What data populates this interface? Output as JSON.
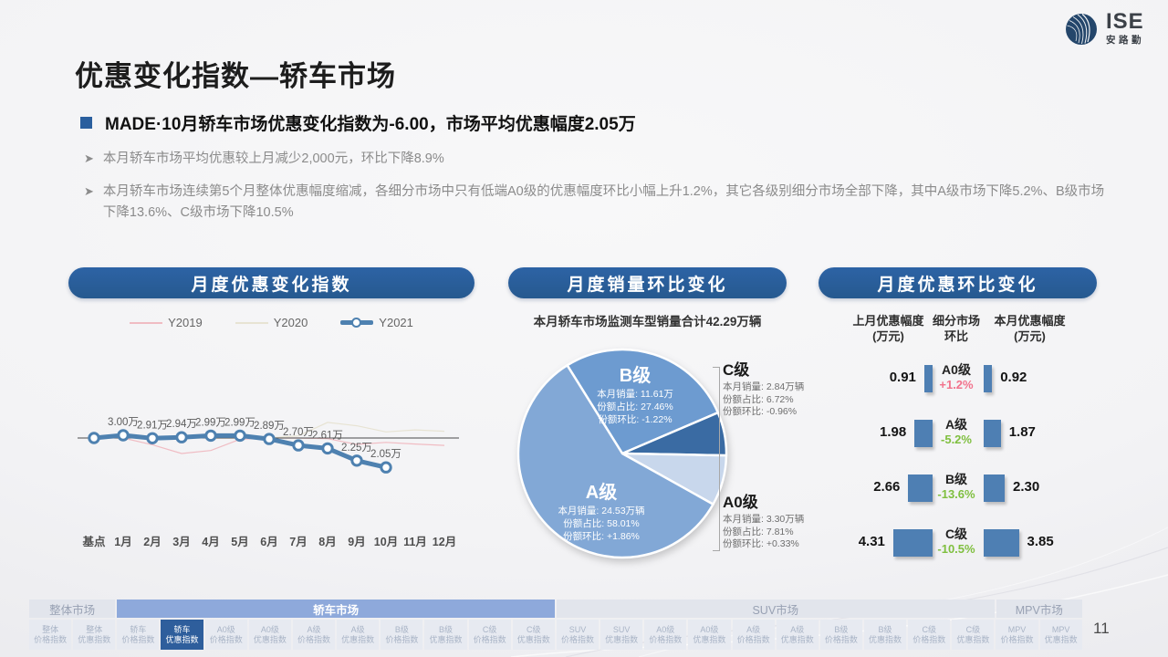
{
  "logo": {
    "brand": "ISE",
    "subbrand": "安路勤"
  },
  "slide": {
    "title": "优惠变化指数—轿车市场",
    "page_number": "11"
  },
  "summary": {
    "headline": "MADE·10月轿车市场优惠变化指数为-6.00，市场平均优惠幅度2.05万",
    "bullets": [
      "本月轿车市场平均优惠较上月减少2,000元，环比下降8.9%",
      "本月轿车市场连续第5个月整体优惠幅度缩减，各细分市场中只有低端A0级的优惠幅度环比小幅上升1.2%，其它各级别细分市场全部下降，其中A级市场下降5.2%、B级市场下降13.6%、C级市场下降10.5%"
    ]
  },
  "chart_data": [
    {
      "type": "line",
      "title": "月度优惠变化指数",
      "categories": [
        "基点",
        "1月",
        "2月",
        "3月",
        "4月",
        "5月",
        "6月",
        "7月",
        "8月",
        "9月",
        "10月",
        "11月",
        "12月"
      ],
      "unit": "万",
      "legend_position": "top",
      "series": [
        {
          "name": "Y2019",
          "color": "#f0bcc3",
          "values": [
            2.92,
            2.92,
            2.72,
            2.46,
            2.55,
            2.88,
            2.92,
            2.92,
            2.9,
            2.73,
            2.79,
            2.74,
            2.7
          ]
        },
        {
          "name": "Y2020",
          "color": "#e7e3d3",
          "values": [
            2.92,
            2.92,
            2.92,
            2.92,
            2.92,
            2.92,
            2.92,
            2.98,
            3.38,
            3.28,
            3.1,
            3.16,
            3.12
          ]
        },
        {
          "name": "Y2021",
          "color": "#4e81b0",
          "values": [
            null,
            3.0,
            2.91,
            2.94,
            2.99,
            2.99,
            2.89,
            2.7,
            2.61,
            2.25,
            2.05,
            null,
            null
          ],
          "labels": [
            "",
            "3.00万",
            "2.91万",
            "2.94万",
            "2.99万",
            "2.99万",
            "2.89万",
            "2.70万",
            "2.61万",
            "2.25万",
            "2.05万",
            "",
            ""
          ]
        }
      ]
    },
    {
      "type": "pie",
      "title": "月度销量环比变化",
      "subtitle": "本月轿车市场监测车型销量合计42.29万辆",
      "field_labels": {
        "sales": "本月销量:",
        "share": "份额占比:",
        "mom": "份额环比:"
      },
      "start_angle_deg": -32,
      "slices": [
        {
          "name": "B级",
          "sales": "11.61万",
          "share": "27.46%",
          "share_pct": 27.46,
          "mom": "-1.22%",
          "color": "#6d9bd0",
          "label": "inside"
        },
        {
          "name": "C级",
          "sales": "2.84万辆",
          "share": "6.72%",
          "share_pct": 6.72,
          "mom": "-0.96%",
          "color": "#3a6ba3",
          "label": "callout"
        },
        {
          "name": "A0级",
          "sales": "3.30万辆",
          "share": "7.81%",
          "share_pct": 7.81,
          "mom": "+0.33%",
          "color": "#c8d7ec",
          "label": "callout"
        },
        {
          "name": "A级",
          "sales": "24.53万辆",
          "share": "58.01%",
          "share_pct": 58.01,
          "mom": "+1.86%",
          "color": "#82a8d6",
          "label": "inside"
        }
      ]
    },
    {
      "type": "bar",
      "title": "月度优惠环比变化",
      "bar_color": "#4e7fb3",
      "columns": [
        {
          "l1": "上月优惠幅度",
          "l2": "(万元)"
        },
        {
          "l1": "细分市场",
          "l2": "环比"
        },
        {
          "l1": "本月优惠幅度",
          "l2": "(万元)"
        }
      ],
      "rows": [
        {
          "segment": "A0级",
          "prev": "0.91",
          "mom": "+1.2%",
          "mom_color": "#f2728c",
          "curr": "0.92"
        },
        {
          "segment": "A级",
          "prev": "1.98",
          "mom": "-5.2%",
          "mom_color": "#7fbf3f",
          "curr": "1.87"
        },
        {
          "segment": "B级",
          "prev": "2.66",
          "mom": "-13.6%",
          "mom_color": "#7fbf3f",
          "curr": "2.30"
        },
        {
          "segment": "C级",
          "prev": "4.31",
          "mom": "-10.5%",
          "mom_color": "#7fbf3f",
          "curr": "3.85"
        }
      ]
    }
  ],
  "bottom_nav": {
    "groups": [
      {
        "label": "整体市场",
        "span": 2,
        "active": false
      },
      {
        "label": "轿车市场",
        "span": 10,
        "active": true
      },
      {
        "label": "SUV市场",
        "span": 10,
        "active": false
      },
      {
        "label": "MPV市场",
        "span": 2,
        "active": false
      }
    ],
    "tabs": [
      {
        "line1": "整体",
        "line2": "价格指数",
        "active": false
      },
      {
        "line1": "整体",
        "line2": "优惠指数",
        "active": false
      },
      {
        "line1": "轿车",
        "line2": "价格指数",
        "active": false
      },
      {
        "line1": "轿车",
        "line2": "优惠指数",
        "active": true
      },
      {
        "line1": "A0级",
        "line2": "价格指数",
        "active": false
      },
      {
        "line1": "A0级",
        "line2": "优惠指数",
        "active": false
      },
      {
        "line1": "A级",
        "line2": "价格指数",
        "active": false
      },
      {
        "line1": "A级",
        "line2": "优惠指数",
        "active": false
      },
      {
        "line1": "B级",
        "line2": "价格指数",
        "active": false
      },
      {
        "line1": "B级",
        "line2": "优惠指数",
        "active": false
      },
      {
        "line1": "C级",
        "line2": "价格指数",
        "active": false
      },
      {
        "line1": "C级",
        "line2": "优惠指数",
        "active": false
      },
      {
        "line1": "SUV",
        "line2": "价格指数",
        "active": false
      },
      {
        "line1": "SUV",
        "line2": "优惠指数",
        "active": false
      },
      {
        "line1": "A0级",
        "line2": "价格指数",
        "active": false
      },
      {
        "line1": "A0级",
        "line2": "优惠指数",
        "active": false
      },
      {
        "line1": "A级",
        "line2": "价格指数",
        "active": false
      },
      {
        "line1": "A级",
        "line2": "优惠指数",
        "active": false
      },
      {
        "line1": "B级",
        "line2": "价格指数",
        "active": false
      },
      {
        "line1": "B级",
        "line2": "优惠指数",
        "active": false
      },
      {
        "line1": "C级",
        "line2": "价格指数",
        "active": false
      },
      {
        "line1": "C级",
        "line2": "优惠指数",
        "active": false
      },
      {
        "line1": "MPV",
        "line2": "价格指数",
        "active": false
      },
      {
        "line1": "MPV",
        "line2": "优惠指数",
        "active": false
      }
    ]
  },
  "colors": {
    "accent": "#2a5f9e",
    "nav_active_group": "#8ea9db",
    "nav_active_tab": "#2e5e9c"
  }
}
